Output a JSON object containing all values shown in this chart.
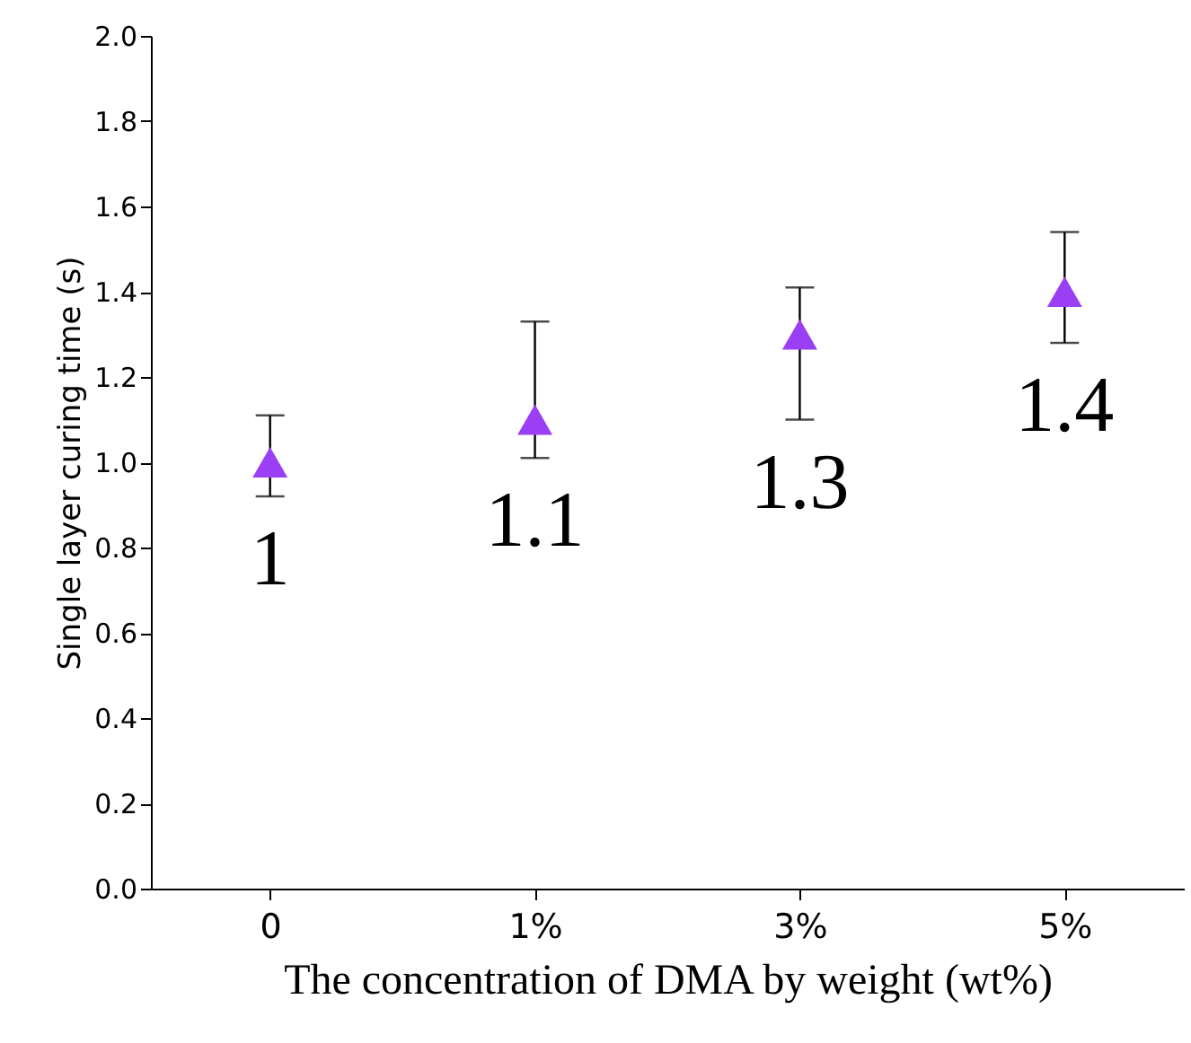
{
  "chart_data": {
    "type": "scatter",
    "xlabel": "The concentration of DMA by weight (wt%)",
    "ylabel": "Single layer curing time (s)",
    "categories": [
      "0",
      "1%",
      "3%",
      "5%"
    ],
    "series": [
      {
        "color": "#9b3ff5",
        "values": [
          1.0,
          1.1,
          1.3,
          1.4
        ],
        "errors": [
          [
            0.92,
            1.11
          ],
          [
            1.01,
            1.33
          ],
          [
            1.1,
            1.41
          ],
          [
            1.28,
            1.54
          ]
        ]
      }
    ],
    "ylim": [
      0,
      2.0
    ],
    "yticks": [
      {
        "value": 0,
        "label": "0.0"
      },
      {
        "value": 0.2,
        "label": "0.2"
      },
      {
        "value": 0.4,
        "label": "0.4"
      },
      {
        "value": 0.6,
        "label": "0.6"
      },
      {
        "value": 0.8,
        "label": "0.8"
      },
      {
        "value": 1.0,
        "label": "1.0"
      },
      {
        "value": 1.2,
        "label": "1.2"
      },
      {
        "value": 1.4,
        "label": "1.4"
      },
      {
        "value": 1.6,
        "label": "1.6"
      },
      {
        "value": 1.8,
        "label": "1.8"
      },
      {
        "value": 2.0,
        "label": "2.0"
      }
    ],
    "marker": "triangle",
    "data_labels": true,
    "grid": false
  }
}
